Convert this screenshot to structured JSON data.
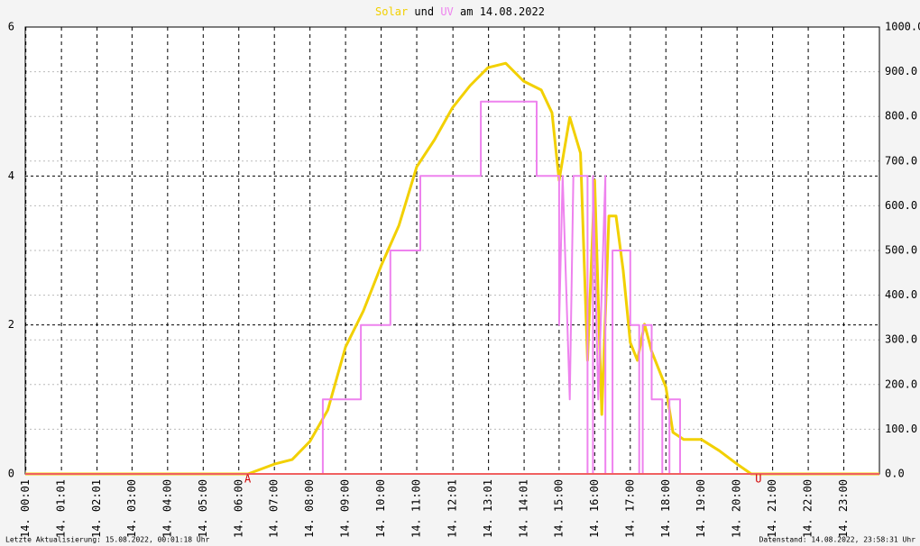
{
  "chart_data": {
    "type": "line",
    "title_connector": "und",
    "title_date": "am 14.08.2022",
    "xlim": [
      0,
      24
    ],
    "xticks": [
      {
        "value": 0.017,
        "label": "14. 00:01"
      },
      {
        "value": 1.017,
        "label": "14. 01:01"
      },
      {
        "value": 2.017,
        "label": "14. 02:01"
      },
      {
        "value": 3,
        "label": "14. 03:00"
      },
      {
        "value": 4,
        "label": "14. 04:00"
      },
      {
        "value": 5,
        "label": "14. 05:00"
      },
      {
        "value": 6,
        "label": "14. 06:00"
      },
      {
        "value": 7,
        "label": "14. 07:00"
      },
      {
        "value": 8,
        "label": "14. 08:00"
      },
      {
        "value": 9,
        "label": "14. 09:00"
      },
      {
        "value": 10,
        "label": "14. 10:00"
      },
      {
        "value": 11,
        "label": "14. 11:00"
      },
      {
        "value": 12.017,
        "label": "14. 12:01"
      },
      {
        "value": 13.017,
        "label": "14. 13:01"
      },
      {
        "value": 14.017,
        "label": "14. 14:01"
      },
      {
        "value": 15,
        "label": "14. 15:00"
      },
      {
        "value": 16,
        "label": "14. 16:00"
      },
      {
        "value": 17,
        "label": "14. 17:00"
      },
      {
        "value": 18,
        "label": "14. 18:00"
      },
      {
        "value": 19,
        "label": "14. 19:00"
      },
      {
        "value": 20,
        "label": "14. 20:00"
      },
      {
        "value": 21,
        "label": "14. 21:00"
      },
      {
        "value": 22,
        "label": "14. 22:00"
      },
      {
        "value": 23,
        "label": "14. 23:00"
      }
    ],
    "ylim": [
      0,
      6
    ],
    "yticks": [
      0,
      2,
      4,
      6
    ],
    "y2lim": [
      0,
      1000
    ],
    "y2ticks": [
      {
        "value": 0,
        "label": "0.0"
      },
      {
        "value": 100,
        "label": "100.0"
      },
      {
        "value": 200,
        "label": "200.0"
      },
      {
        "value": 300,
        "label": "300.0"
      },
      {
        "value": 400,
        "label": "400.0"
      },
      {
        "value": 500,
        "label": "500.0"
      },
      {
        "value": 600,
        "label": "600.0"
      },
      {
        "value": 700,
        "label": "700.0"
      },
      {
        "value": 800,
        "label": "800.0"
      },
      {
        "value": 900,
        "label": "900.0"
      },
      {
        "value": 1000,
        "label": "1000.0"
      }
    ],
    "grid": true,
    "series": [
      {
        "name": "Solar",
        "color": "#f2d000",
        "axis": "y2",
        "x": [
          0,
          6.26,
          7.0,
          7.5,
          8.0,
          8.5,
          9.0,
          9.5,
          10.0,
          10.5,
          11.0,
          11.5,
          12.0,
          12.5,
          13.0,
          13.5,
          14.0,
          14.5,
          14.8,
          15.0,
          15.3,
          15.6,
          15.8,
          16.0,
          16.2,
          16.4,
          16.6,
          16.8,
          17.0,
          17.2,
          17.4,
          17.6,
          18.0,
          18.2,
          18.5,
          19.0,
          19.5,
          20.0,
          20.4,
          24
        ],
        "values": [
          0,
          0,
          22,
          32,
          73,
          143,
          284,
          365,
          466,
          556,
          687,
          748,
          819,
          869,
          909,
          919,
          879,
          859,
          808,
          657,
          798,
          718,
          254,
          657,
          133,
          577,
          577,
          456,
          294,
          254,
          335,
          274,
          194,
          93,
          77,
          77,
          52,
          22,
          0,
          0
        ]
      },
      {
        "name": "UV",
        "color": "#ee82ee",
        "x": [
          0,
          8.36,
          8.36,
          9.43,
          9.43,
          10.26,
          10.26,
          11.1,
          11.1,
          12.8,
          12.8,
          14.37,
          14.37,
          15.0,
          15.0,
          15.1,
          15.3,
          15.4,
          15.8,
          15.8,
          15.95,
          15.95,
          16.1,
          16.3,
          16.3,
          16.5,
          16.5,
          17.0,
          17.0,
          17.25,
          17.25,
          17.35,
          17.35,
          17.6,
          17.6,
          17.9,
          17.9,
          18.1,
          18.1,
          18.4,
          18.4,
          24
        ],
        "values": [
          0,
          0,
          1,
          1,
          2,
          2,
          3,
          3,
          4,
          4,
          5,
          5,
          4,
          4,
          2,
          4,
          1,
          4,
          4,
          0,
          0,
          4,
          1,
          4,
          0,
          0,
          3,
          3,
          2,
          2,
          0,
          0,
          2,
          2,
          1,
          1,
          0,
          0,
          1,
          1,
          0,
          0
        ]
      }
    ],
    "annotations": [
      {
        "label": "A",
        "x": 6.25
      },
      {
        "label": "U",
        "x": 20.6
      }
    ],
    "footer_left": "Letzte Aktualisierung: 15.08.2022, 00:01:18 Uhr",
    "footer_right": "Datenstand: 14.08.2022, 23:58:31 Uhr"
  }
}
